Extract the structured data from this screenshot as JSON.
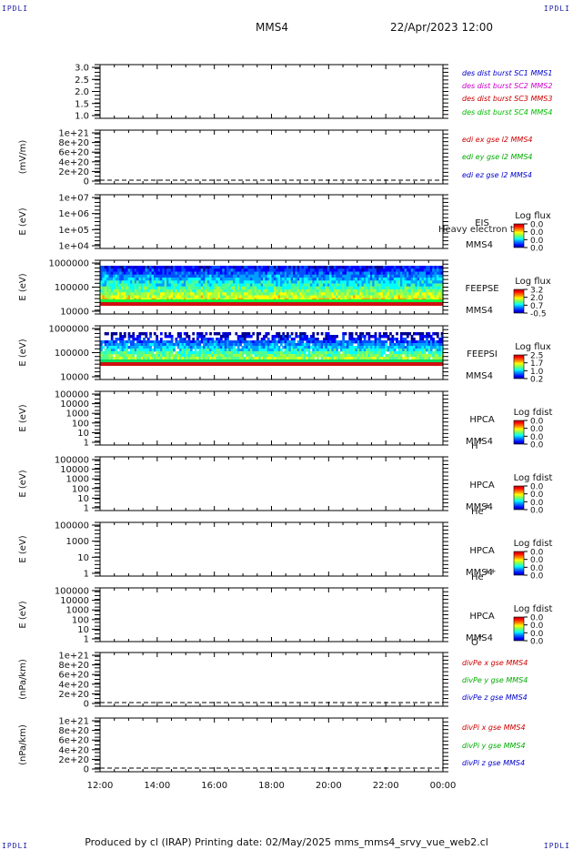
{
  "header": {
    "corner_label": "IPDLI",
    "title": "MMS4",
    "datetime": "22/Apr/2023 12:00"
  },
  "footer": {
    "text": "Produced by cl (IRAP)   Printing date: 02/May/2025   mms_mms4_srvy_vue_web2.cl"
  },
  "x_axis": {
    "ticks": [
      "12:00",
      "14:00",
      "16:00",
      "18:00",
      "20:00",
      "22:00",
      "00:00"
    ]
  },
  "chart_data": [
    {
      "type": "line",
      "id": "p1",
      "ylabel": "",
      "yticks": [
        "3.0",
        "2.5",
        "2.0",
        "1.5",
        "1.0"
      ],
      "ylim": [
        0.8,
        3.2
      ],
      "series": [
        {
          "name": "des dist burst SC1 MMS1",
          "color": "#0000cc",
          "values": []
        },
        {
          "name": "des dist burst SC2 MMS2",
          "color": "#cc00cc",
          "values": []
        },
        {
          "name": "des dist burst SC3 MMS3",
          "color": "#cc0000",
          "values": []
        },
        {
          "name": "des dist burst SC4 MMS4",
          "color": "#00bb00",
          "values": []
        }
      ]
    },
    {
      "type": "line",
      "id": "p2",
      "ylabel": "(mV/m)",
      "yticks": [
        "1e+21",
        "8e+20",
        "6e+20",
        "4e+20",
        "2e+20",
        "0"
      ],
      "ylim": [
        0,
        1.1e+21
      ],
      "zero_line": true,
      "series": [
        {
          "name": "edi ex gse l2 MMS4",
          "color": "#cc0000",
          "values": []
        },
        {
          "name": "edi ey gse l2 MMS4",
          "color": "#00aa00",
          "values": []
        },
        {
          "name": "edi ez gse l2 MMS4",
          "color": "#0000cc",
          "values": []
        }
      ]
    },
    {
      "type": "heatmap",
      "id": "p3",
      "ylabel": "E (eV)",
      "yscale": "log",
      "yticks": [
        "1e+07",
        "1e+06",
        "1e+05",
        "1e+04"
      ],
      "instrument": [
        "EIS",
        "MMS4"
      ],
      "overlay_text": "Heavy electron to",
      "colorbar": {
        "title": "Log flux",
        "ticks": [
          "0.0",
          "0.0",
          "0.0",
          "0.0"
        ]
      },
      "spectrogram": "none"
    },
    {
      "type": "heatmap",
      "id": "p4",
      "ylabel": "E (eV)",
      "yscale": "log",
      "yticks": [
        "1000000",
        "100000",
        "10000"
      ],
      "instrument": [
        "FEEPSE",
        "MMS4"
      ],
      "colorbar": {
        "title": "Log flux",
        "ticks": [
          "3.2",
          "2.0",
          "0.7",
          "-0.5"
        ]
      },
      "spectrogram": "feeps_electron"
    },
    {
      "type": "heatmap",
      "id": "p5",
      "ylabel": "E (eV)",
      "yscale": "log",
      "yticks": [
        "1000000",
        "100000",
        "10000"
      ],
      "instrument": [
        "FEEPSI",
        "MMS4"
      ],
      "colorbar": {
        "title": "Log flux",
        "ticks": [
          "2.5",
          "1.7",
          "1.0",
          "0.2"
        ]
      },
      "spectrogram": "feeps_ion"
    },
    {
      "type": "heatmap",
      "id": "p6",
      "ylabel": "E (eV)",
      "yscale": "log",
      "yticks": [
        "100000",
        "10000",
        "1000",
        "100",
        "10",
        "1"
      ],
      "instrument": [
        "HPCA",
        "MMS4"
      ],
      "species": {
        "base": "H",
        "sup": "+"
      },
      "colorbar": {
        "title": "Log fdist",
        "ticks": [
          "0.0",
          "0.0",
          "0.0",
          "0.0"
        ]
      },
      "spectrogram": "none"
    },
    {
      "type": "heatmap",
      "id": "p7",
      "ylabel": "E (eV)",
      "yscale": "log",
      "yticks": [
        "100000",
        "10000",
        "1000",
        "100",
        "10",
        "1"
      ],
      "instrument": [
        "HPCA",
        "MMS4"
      ],
      "species": {
        "base": "He",
        "sup": "+"
      },
      "colorbar": {
        "title": "Log fdist",
        "ticks": [
          "0.0",
          "0.0",
          "0.0",
          "0.0"
        ]
      },
      "spectrogram": "none"
    },
    {
      "type": "heatmap",
      "id": "p8",
      "ylabel": "E (eV)",
      "yscale": "log",
      "yticks": [
        "100000",
        "1000",
        "10",
        "1"
      ],
      "instrument": [
        "HPCA",
        "MMS4"
      ],
      "species": {
        "base": "He",
        "sup": "++"
      },
      "colorbar": {
        "title": "Log fdist",
        "ticks": [
          "0.0",
          "0.0",
          "0.0",
          "0.0"
        ]
      },
      "spectrogram": "none"
    },
    {
      "type": "heatmap",
      "id": "p9",
      "ylabel": "E (eV)",
      "yscale": "log",
      "yticks": [
        "100000",
        "10000",
        "1000",
        "100",
        "10",
        "1"
      ],
      "instrument": [
        "HPCA",
        "MMS4"
      ],
      "species": {
        "base": "O",
        "sup": "+"
      },
      "colorbar": {
        "title": "Log fdist",
        "ticks": [
          "0.0",
          "0.0",
          "0.0",
          "0.0"
        ]
      },
      "spectrogram": "none"
    },
    {
      "type": "line",
      "id": "p10",
      "ylabel": "(nPa/km)",
      "yticks": [
        "1e+21",
        "8e+20",
        "6e+20",
        "4e+20",
        "2e+20",
        "0"
      ],
      "ylim": [
        0,
        1.1e+21
      ],
      "zero_line": true,
      "series": [
        {
          "name": "divPe x gse MMS4",
          "color": "#cc0000",
          "values": []
        },
        {
          "name": "divPe y gse MMS4",
          "color": "#00aa00",
          "values": []
        },
        {
          "name": "divPe z gse MMS4",
          "color": "#0000cc",
          "values": []
        }
      ]
    },
    {
      "type": "line",
      "id": "p11",
      "ylabel": "(nPa/km)",
      "yticks": [
        "1e+21",
        "8e+20",
        "6e+20",
        "4e+20",
        "2e+20",
        "0"
      ],
      "ylim": [
        0,
        1.1e+21
      ],
      "zero_line": true,
      "series": [
        {
          "name": "divPi x gse MMS4",
          "color": "#cc0000",
          "values": []
        },
        {
          "name": "divPi y gse MMS4",
          "color": "#00aa00",
          "values": []
        },
        {
          "name": "divPi z gse MMS4",
          "color": "#0000cc",
          "values": []
        }
      ]
    }
  ]
}
